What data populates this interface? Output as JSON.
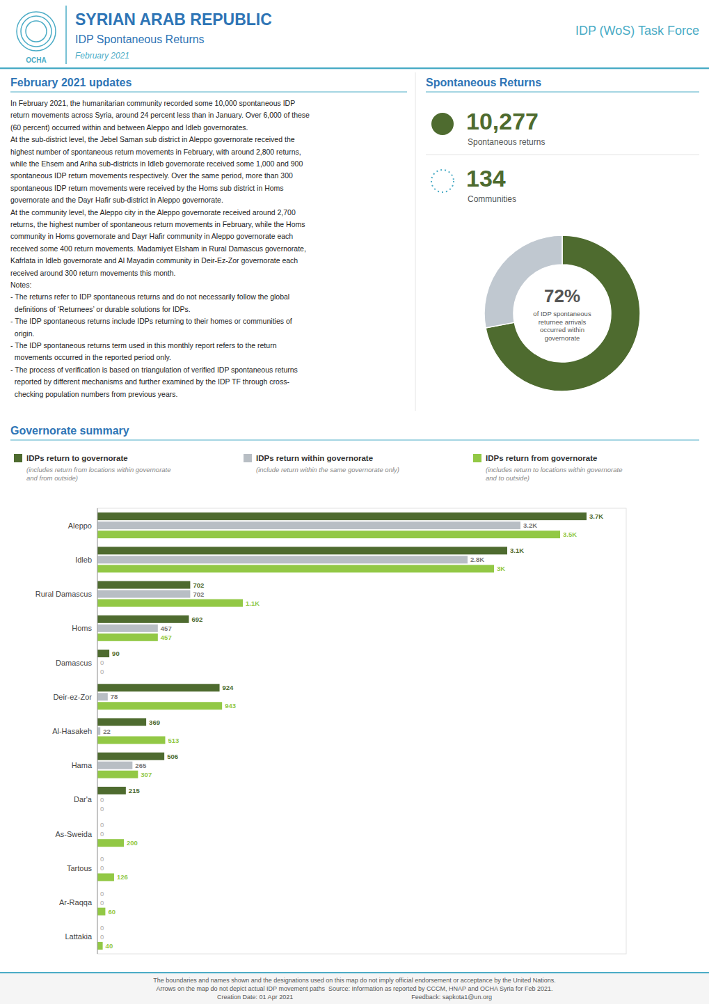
{
  "chart_data": [
    {
      "type": "bar",
      "orientation": "horizontal",
      "title": "Governorate summary",
      "categories": [
        "Aleppo",
        "Idleb",
        "Rural Damascus",
        "Homs",
        "Damascus",
        "Deir-ez-Zor",
        "Al-Hasakeh",
        "Hama",
        "Dar'a",
        "As-Sweida",
        "Tartous",
        "Ar-Raqqa",
        "Lattakia"
      ],
      "series": [
        {
          "name": "IDPs return to governorate",
          "color": "#4E6B2F",
          "values": [
            3700,
            3100,
            702,
            692,
            90,
            924,
            369,
            506,
            215,
            0,
            0,
            0,
            0
          ],
          "value_labels": [
            "3.7K",
            "3.1K",
            "702",
            "692",
            "90",
            "924",
            "369",
            "506",
            "215",
            "0",
            "0",
            "0",
            "0"
          ]
        },
        {
          "name": "IDPs return within governorate",
          "color": "#B8BEC4",
          "values": [
            3200,
            2800,
            702,
            457,
            0,
            78,
            22,
            265,
            0,
            0,
            0,
            0,
            0
          ],
          "value_labels": [
            "3.2K",
            "2.8K",
            "702",
            "457",
            "0",
            "78",
            "22",
            "265",
            "0",
            "0",
            "0",
            "0",
            "0"
          ]
        },
        {
          "name": "IDPs return from governorate",
          "color": "#92C845",
          "values": [
            3500,
            3000,
            1100,
            457,
            0,
            943,
            513,
            307,
            0,
            200,
            126,
            60,
            40
          ],
          "value_labels": [
            "3.5K",
            "3K",
            "1.1K",
            "457",
            "0",
            "943",
            "513",
            "307",
            "0",
            "200",
            "126",
            "60",
            "40"
          ]
        }
      ],
      "annotations": [
        "(includes return from locations within governorate\nand from outside)",
        "(include return within the same governorate only)",
        "(includes return to locations within governorate\nand to outside)"
      ],
      "xlim": [
        0,
        4000
      ],
      "tick_labels": "y",
      "data_labels": true,
      "grid": false,
      "legend": "top"
    },
    {
      "type": "pie",
      "values": [
        72,
        28
      ],
      "colors": [
        "#4E6B2F",
        "#C0C8D0"
      ],
      "data_labels": true,
      "value_labels": [
        "72%",
        null
      ],
      "subtitle": "of IDP spontaneous\nreturnee arrivals\noccurred within\ngovernorate"
    }
  ],
  "page": {
    "logo": "OCHA",
    "title": "SYRIAN ARAB REPUBLIC",
    "subtitle": "IDP Spontaneous Returns",
    "date": "February 2021",
    "right_label": "IDP (WoS) Task Force",
    "header_color": "#4BACC6",
    "section_title": "February 2021 updates",
    "body_lines": [
      "In February 2021, the humanitarian community recorded some 10,000 spontaneous IDP",
      "return movements across Syria, around 24 percent less than in January. Over 6,000 of these",
      "(60 percent) occurred within and between Aleppo and Idleb governorates.",
      "At the sub-district level, the Jebel Saman sub district in Aleppo governorate received the",
      "highest number of spontaneous return movements in February, with around 2,800 returns,",
      "while the Ehsem and Ariha sub-districts in Idleb governorate received some 1,000 and 900",
      "spontaneous IDP return movements respectively. Over the same period, more than 300",
      "spontaneous IDP return movements were received by the Homs sub district in Homs",
      "governorate and the Dayr Hafir sub-district in Aleppo governorate.",
      "At the community level, the Aleppo city in the Aleppo governorate received around 2,700",
      "returns, the highest number of spontaneous return movements in February, while the Homs",
      "community in Homs governorate and Dayr Hafir community in Aleppo governorate each",
      "received some 400 return movements. Madamiyet Elsham in Rural Damascus governorate,",
      "Kafrlata in Idleb governorate and Al Mayadin community in Deir-Ez-Zor governorate each",
      "received around 300 return movements this month.",
      "Notes:",
      "- The returns refer to IDP spontaneous returns and do not necessarily follow the global",
      "  definitions of ‘Returnees’ or durable solutions for IDPs.",
      "- The IDP spontaneous returns include IDPs returning to their homes or communities of",
      "  origin.",
      "- The IDP spontaneous returns term used in this monthly report refers to the return",
      "  movements occurred in the reported period only.",
      "- The process of verification is based on triangulation of verified IDP spontaneous returns",
      "  reported by different mechanisms and further examined by the IDP TF through cross-",
      "  checking population numbers from previous years."
    ],
    "stats_title": "Spontaneous Returns",
    "stats": [
      {
        "value": 10277,
        "label": "10,277",
        "caption": "Spontaneous returns"
      },
      {
        "value": 134,
        "label": "134",
        "caption": "Communities"
      }
    ],
    "footer": [
      "The boundaries and names shown and the designations used on this map do not imply official endorsement or acceptance by the United Nations.",
      "Arrows on the map do not depict actual IDP movement paths  Source: Information as reported by CCCM, HNAP and OCHA Syria for Feb 2021.",
      "Creation Date: 01 Apr 2021                                                                    Feedback: sapkota1@un.org"
    ]
  }
}
